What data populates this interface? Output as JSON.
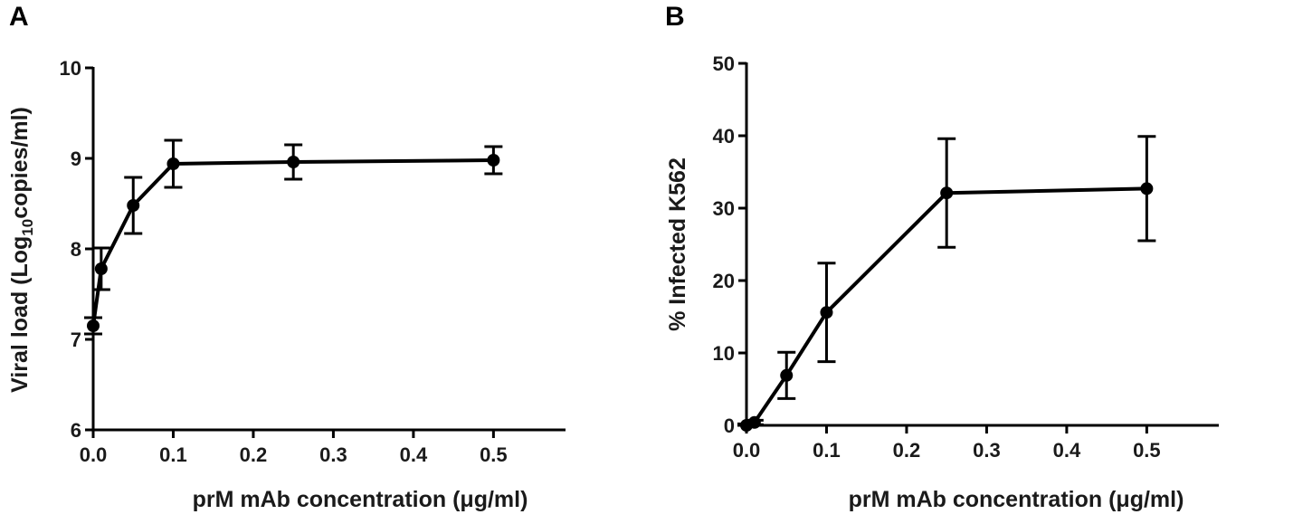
{
  "chart_data": [
    {
      "panel": "A",
      "type": "line",
      "xlabel": "prM mAb concentration (μg/ml)",
      "ylabel": {
        "prefix": "Viral load (Log",
        "sub": "10",
        "suffix": "copies/ml)"
      },
      "xlim": [
        0,
        0.59
      ],
      "ylim": [
        6,
        10
      ],
      "xticks": [
        0.0,
        0.1,
        0.2,
        0.3,
        0.4,
        0.5
      ],
      "xtick_labels": [
        "0.0",
        "0.1",
        "0.2",
        "0.3",
        "0.4",
        "0.5"
      ],
      "yticks": [
        6,
        7,
        8,
        9,
        10
      ],
      "ytick_labels": [
        "6",
        "7",
        "8",
        "9",
        "10"
      ],
      "grid": false,
      "series": [
        {
          "x": [
            0.0,
            0.01,
            0.05,
            0.1,
            0.25,
            0.5
          ],
          "y": [
            7.15,
            7.78,
            8.48,
            8.94,
            8.96,
            8.98
          ],
          "err": [
            0.09,
            0.23,
            0.31,
            0.26,
            0.19,
            0.15
          ]
        }
      ]
    },
    {
      "panel": "B",
      "type": "line",
      "xlabel": "prM mAb concentration (μg/ml)",
      "ylabel": {
        "prefix": "% Infected K562",
        "sub": "",
        "suffix": ""
      },
      "xlim": [
        0,
        0.59
      ],
      "ylim": [
        0,
        50
      ],
      "xticks": [
        0.0,
        0.1,
        0.2,
        0.3,
        0.4,
        0.5
      ],
      "xtick_labels": [
        "0.0",
        "0.1",
        "0.2",
        "0.3",
        "0.4",
        "0.5"
      ],
      "yticks": [
        0,
        10,
        20,
        30,
        40,
        50
      ],
      "ytick_labels": [
        "0",
        "10",
        "20",
        "30",
        "40",
        "50"
      ],
      "grid": false,
      "series": [
        {
          "x": [
            0.0,
            0.01,
            0.05,
            0.1,
            0.25,
            0.5
          ],
          "y": [
            0.0,
            0.4,
            6.9,
            15.6,
            32.1,
            32.7
          ],
          "err": [
            0.2,
            0.3,
            3.2,
            6.8,
            7.5,
            7.2
          ]
        }
      ]
    }
  ]
}
